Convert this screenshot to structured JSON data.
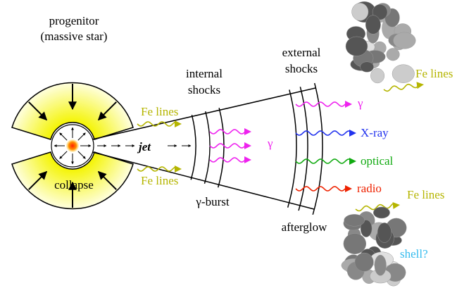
{
  "labels": {
    "progenitor": [
      "progenitor",
      "(massive star)"
    ],
    "internal_shocks": [
      "internal",
      "shocks"
    ],
    "external_shocks": [
      "external",
      "shocks"
    ],
    "fe_lines": [
      "Fe lines",
      "Fe lines",
      "Fe lines",
      "Fe lines"
    ],
    "jet": "jet",
    "collapse": "collapse",
    "gamma_burst": "γ-burst",
    "gamma_internal": "γ",
    "gamma_external": "γ",
    "xray": "X-ray",
    "optical": "optical",
    "radio": "radio",
    "afterglow": "afterglow",
    "shell": "shell?"
  }
}
